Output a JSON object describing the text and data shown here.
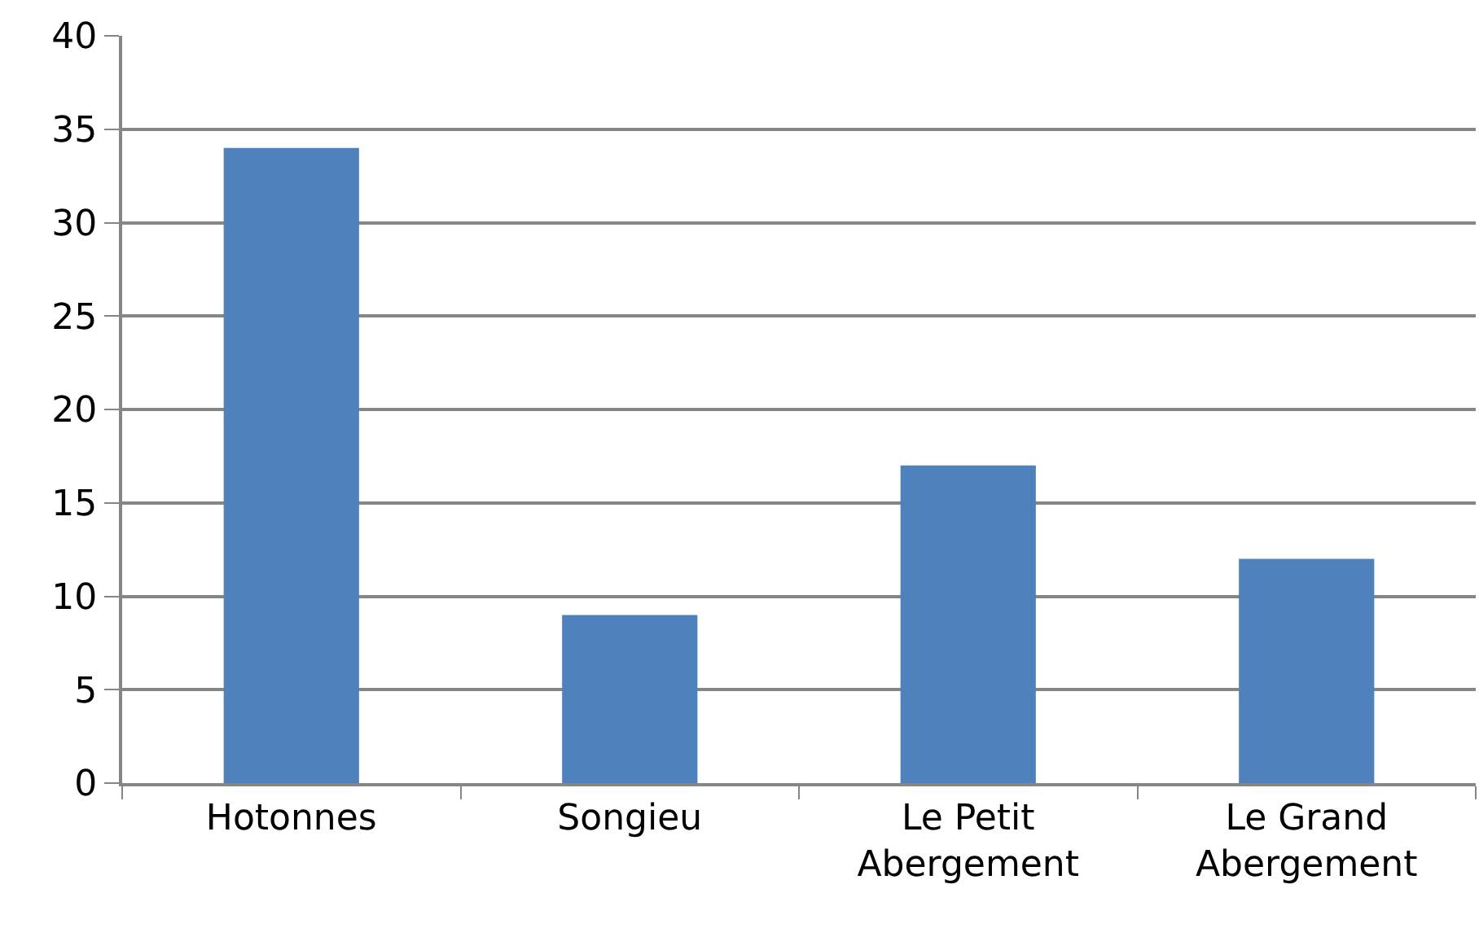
{
  "chart_data": {
    "type": "bar",
    "categories": [
      "Hotonnes",
      "Songieu",
      "Le Petit Abergement",
      "Le Grand Abergement"
    ],
    "values": [
      34,
      9,
      17,
      12
    ],
    "color": "#4f81bd",
    "ylim": [
      0,
      40
    ],
    "yticks": [
      0,
      5,
      10,
      15,
      20,
      25,
      30,
      35,
      40
    ],
    "grid": "y"
  }
}
